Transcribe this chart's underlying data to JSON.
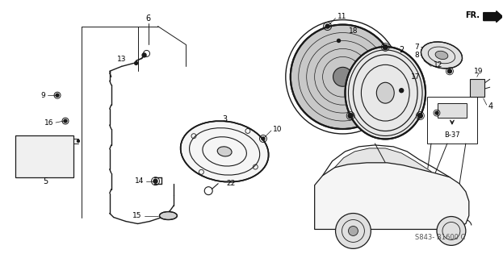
{
  "bg_color": "#ffffff",
  "fig_width": 6.23,
  "fig_height": 3.2,
  "dpi": 100,
  "diagram_code": "S843- B1600 C",
  "line_color": "#1a1a1a",
  "text_color": "#000000"
}
